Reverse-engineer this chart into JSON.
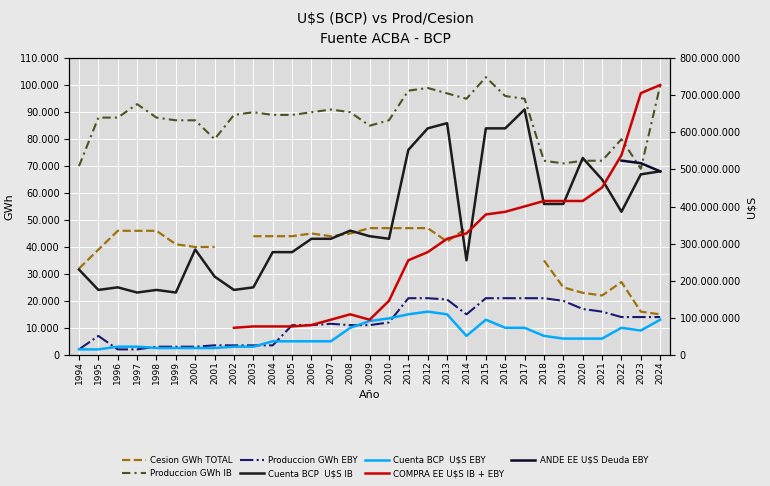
{
  "title1": "U$S (BCP) vs Prod/Cesion",
  "title2": "Fuente ACBA - BCP",
  "xlabel": "Año",
  "ylabel_left": "GWh",
  "ylabel_right": "U$S",
  "years": [
    1994,
    1995,
    1996,
    1997,
    1998,
    1999,
    2000,
    2001,
    2002,
    2003,
    2004,
    2005,
    2006,
    2007,
    2008,
    2009,
    2010,
    2011,
    2012,
    2013,
    2014,
    2015,
    2016,
    2017,
    2018,
    2019,
    2020,
    2021,
    2022,
    2023,
    2024
  ],
  "cesion_gwh_total": [
    32000,
    39000,
    46000,
    46000,
    46000,
    41000,
    40000,
    40000,
    null,
    44000,
    44000,
    44000,
    45000,
    44000,
    45000,
    47000,
    47000,
    47000,
    47000,
    42000,
    47000,
    null,
    null,
    null,
    35000,
    25000,
    23000,
    22000,
    27000,
    16000,
    15000
  ],
  "produccion_gwh_ib": [
    70000,
    88000,
    88000,
    93000,
    88000,
    87000,
    87000,
    80000,
    89000,
    90000,
    89000,
    89000,
    90000,
    91000,
    90000,
    85000,
    87000,
    98000,
    99000,
    97000,
    95000,
    103000,
    96000,
    95000,
    72000,
    71000,
    72000,
    72000,
    80000,
    69000,
    100000
  ],
  "produccion_gwh_eby": [
    2000,
    7000,
    2000,
    2000,
    3000,
    3000,
    3000,
    3500,
    3500,
    3500,
    3500,
    11000,
    11000,
    11500,
    11000,
    11000,
    12000,
    21000,
    21000,
    20500,
    15000,
    21000,
    21000,
    21000,
    21000,
    20000,
    17000,
    16000,
    14000,
    14000,
    14000
  ],
  "cuenta_bcp_uss_ib": [
    230000000,
    175000000,
    182000000,
    168000000,
    175000000,
    168000000,
    284000000,
    211000000,
    175000000,
    182000000,
    277000000,
    277000000,
    313000000,
    313000000,
    335000000,
    320000000,
    313000000,
    553000000,
    611000000,
    625000000,
    255000000,
    611000000,
    611000000,
    662000000,
    407000000,
    407000000,
    531000000,
    473000000,
    386000000,
    487000000,
    495000000
  ],
  "cuenta_bcp_uss_eby": [
    14600000,
    14600000,
    21900000,
    21900000,
    18200000,
    18200000,
    18200000,
    18200000,
    21900000,
    21900000,
    36400000,
    36400000,
    36400000,
    36400000,
    72800000,
    91000000,
    98200000,
    109200000,
    116400000,
    109200000,
    51000000,
    94600000,
    72800000,
    72800000,
    51000000,
    43700000,
    43700000,
    43700000,
    72800000,
    65500000,
    94600000
  ],
  "compra_ee_uss_ib_eby": [
    null,
    null,
    null,
    null,
    null,
    null,
    null,
    null,
    72800000,
    76500000,
    76500000,
    76500000,
    80300000,
    94600000,
    109200000,
    94600000,
    145600000,
    255000000,
    277000000,
    313000000,
    327600000,
    378600000,
    385800000,
    400400000,
    415000000,
    415000000,
    415000000,
    451400000,
    538700000,
    706000000,
    728000000
  ],
  "ande_ee_uss_deuda_eby": [
    null,
    null,
    null,
    null,
    null,
    null,
    null,
    null,
    null,
    null,
    null,
    null,
    null,
    null,
    null,
    null,
    null,
    null,
    null,
    null,
    null,
    null,
    null,
    null,
    null,
    null,
    null,
    null,
    524000000,
    517000000,
    495000000
  ],
  "ylim_left": [
    0,
    110000
  ],
  "ylim_right": [
    0,
    800000000
  ],
  "left_ticks": [
    0,
    10000,
    20000,
    30000,
    40000,
    50000,
    60000,
    70000,
    80000,
    90000,
    100000,
    110000
  ],
  "right_ticks": [
    0,
    100000000,
    200000000,
    300000000,
    400000000,
    500000000,
    600000000,
    700000000,
    800000000
  ],
  "colors": {
    "cesion_gwh_total": "#A0720A",
    "produccion_gwh_ib": "#4B5320",
    "produccion_gwh_eby": "#191970",
    "cuenta_bcp_uss_ib": "#1C1C1C",
    "cuenta_bcp_uss_eby": "#00AAFF",
    "compra_ee_uss_ib_eby": "#CC0000",
    "ande_ee_uss_deuda_eby": "#0A0A2A"
  },
  "background_color": "#E8E8E8"
}
